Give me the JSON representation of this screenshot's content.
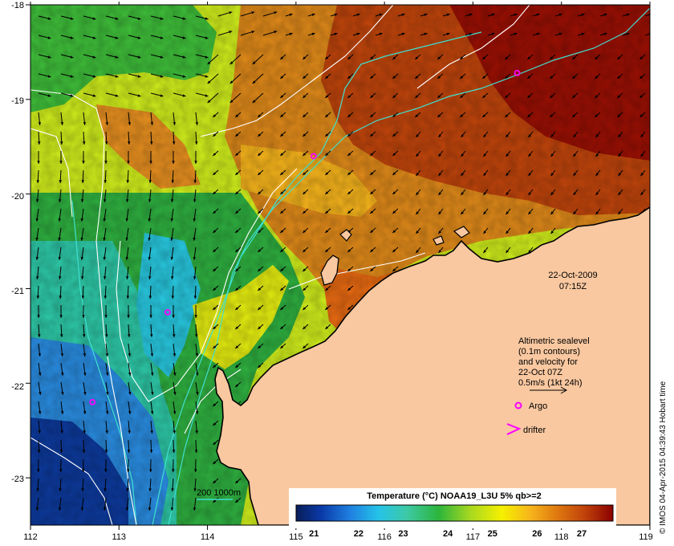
{
  "map": {
    "lon_ticks": [
      "112",
      "113",
      "114",
      "115",
      "116",
      "117",
      "118",
      "119"
    ],
    "lat_ticks": [
      "-18",
      "-19",
      "-20",
      "-21",
      "-22",
      "-23"
    ],
    "date": "22-Oct-2009",
    "time": "07:15Z",
    "legend": {
      "line1": "Altimetric sealevel",
      "line2": "(0.1m contours)",
      "line3": "and velocity for",
      "line4": "22-Oct 07Z",
      "line5": "0.5m/s (1kt 24h)",
      "argo": "Argo",
      "drifter": "drifter"
    },
    "depth_legend": "200  1000m",
    "colorbar": {
      "title": "Temperature (°C) NOAA19_L3U 5% qb>=2",
      "ticks": [
        "21",
        "22",
        "23",
        "24",
        "25",
        "26",
        "27"
      ],
      "min": 20.6,
      "max": 27.7
    },
    "credit": "© IMOS 04-Apr-2015 04:39:43 Hobart time",
    "colors": {
      "land": "#f9c8a0",
      "cold": "#08306b",
      "warm": "#8b0000",
      "argo": "#ff00ff",
      "bathymetry": "#40e0d0",
      "contour": "#ffffff"
    },
    "argo_floats": [
      {
        "lon": 117.5,
        "lat": -18.72
      },
      {
        "lon": 115.2,
        "lat": -19.6
      },
      {
        "lon": 113.55,
        "lat": -21.25
      },
      {
        "lon": 112.7,
        "lat": -22.2
      }
    ]
  }
}
